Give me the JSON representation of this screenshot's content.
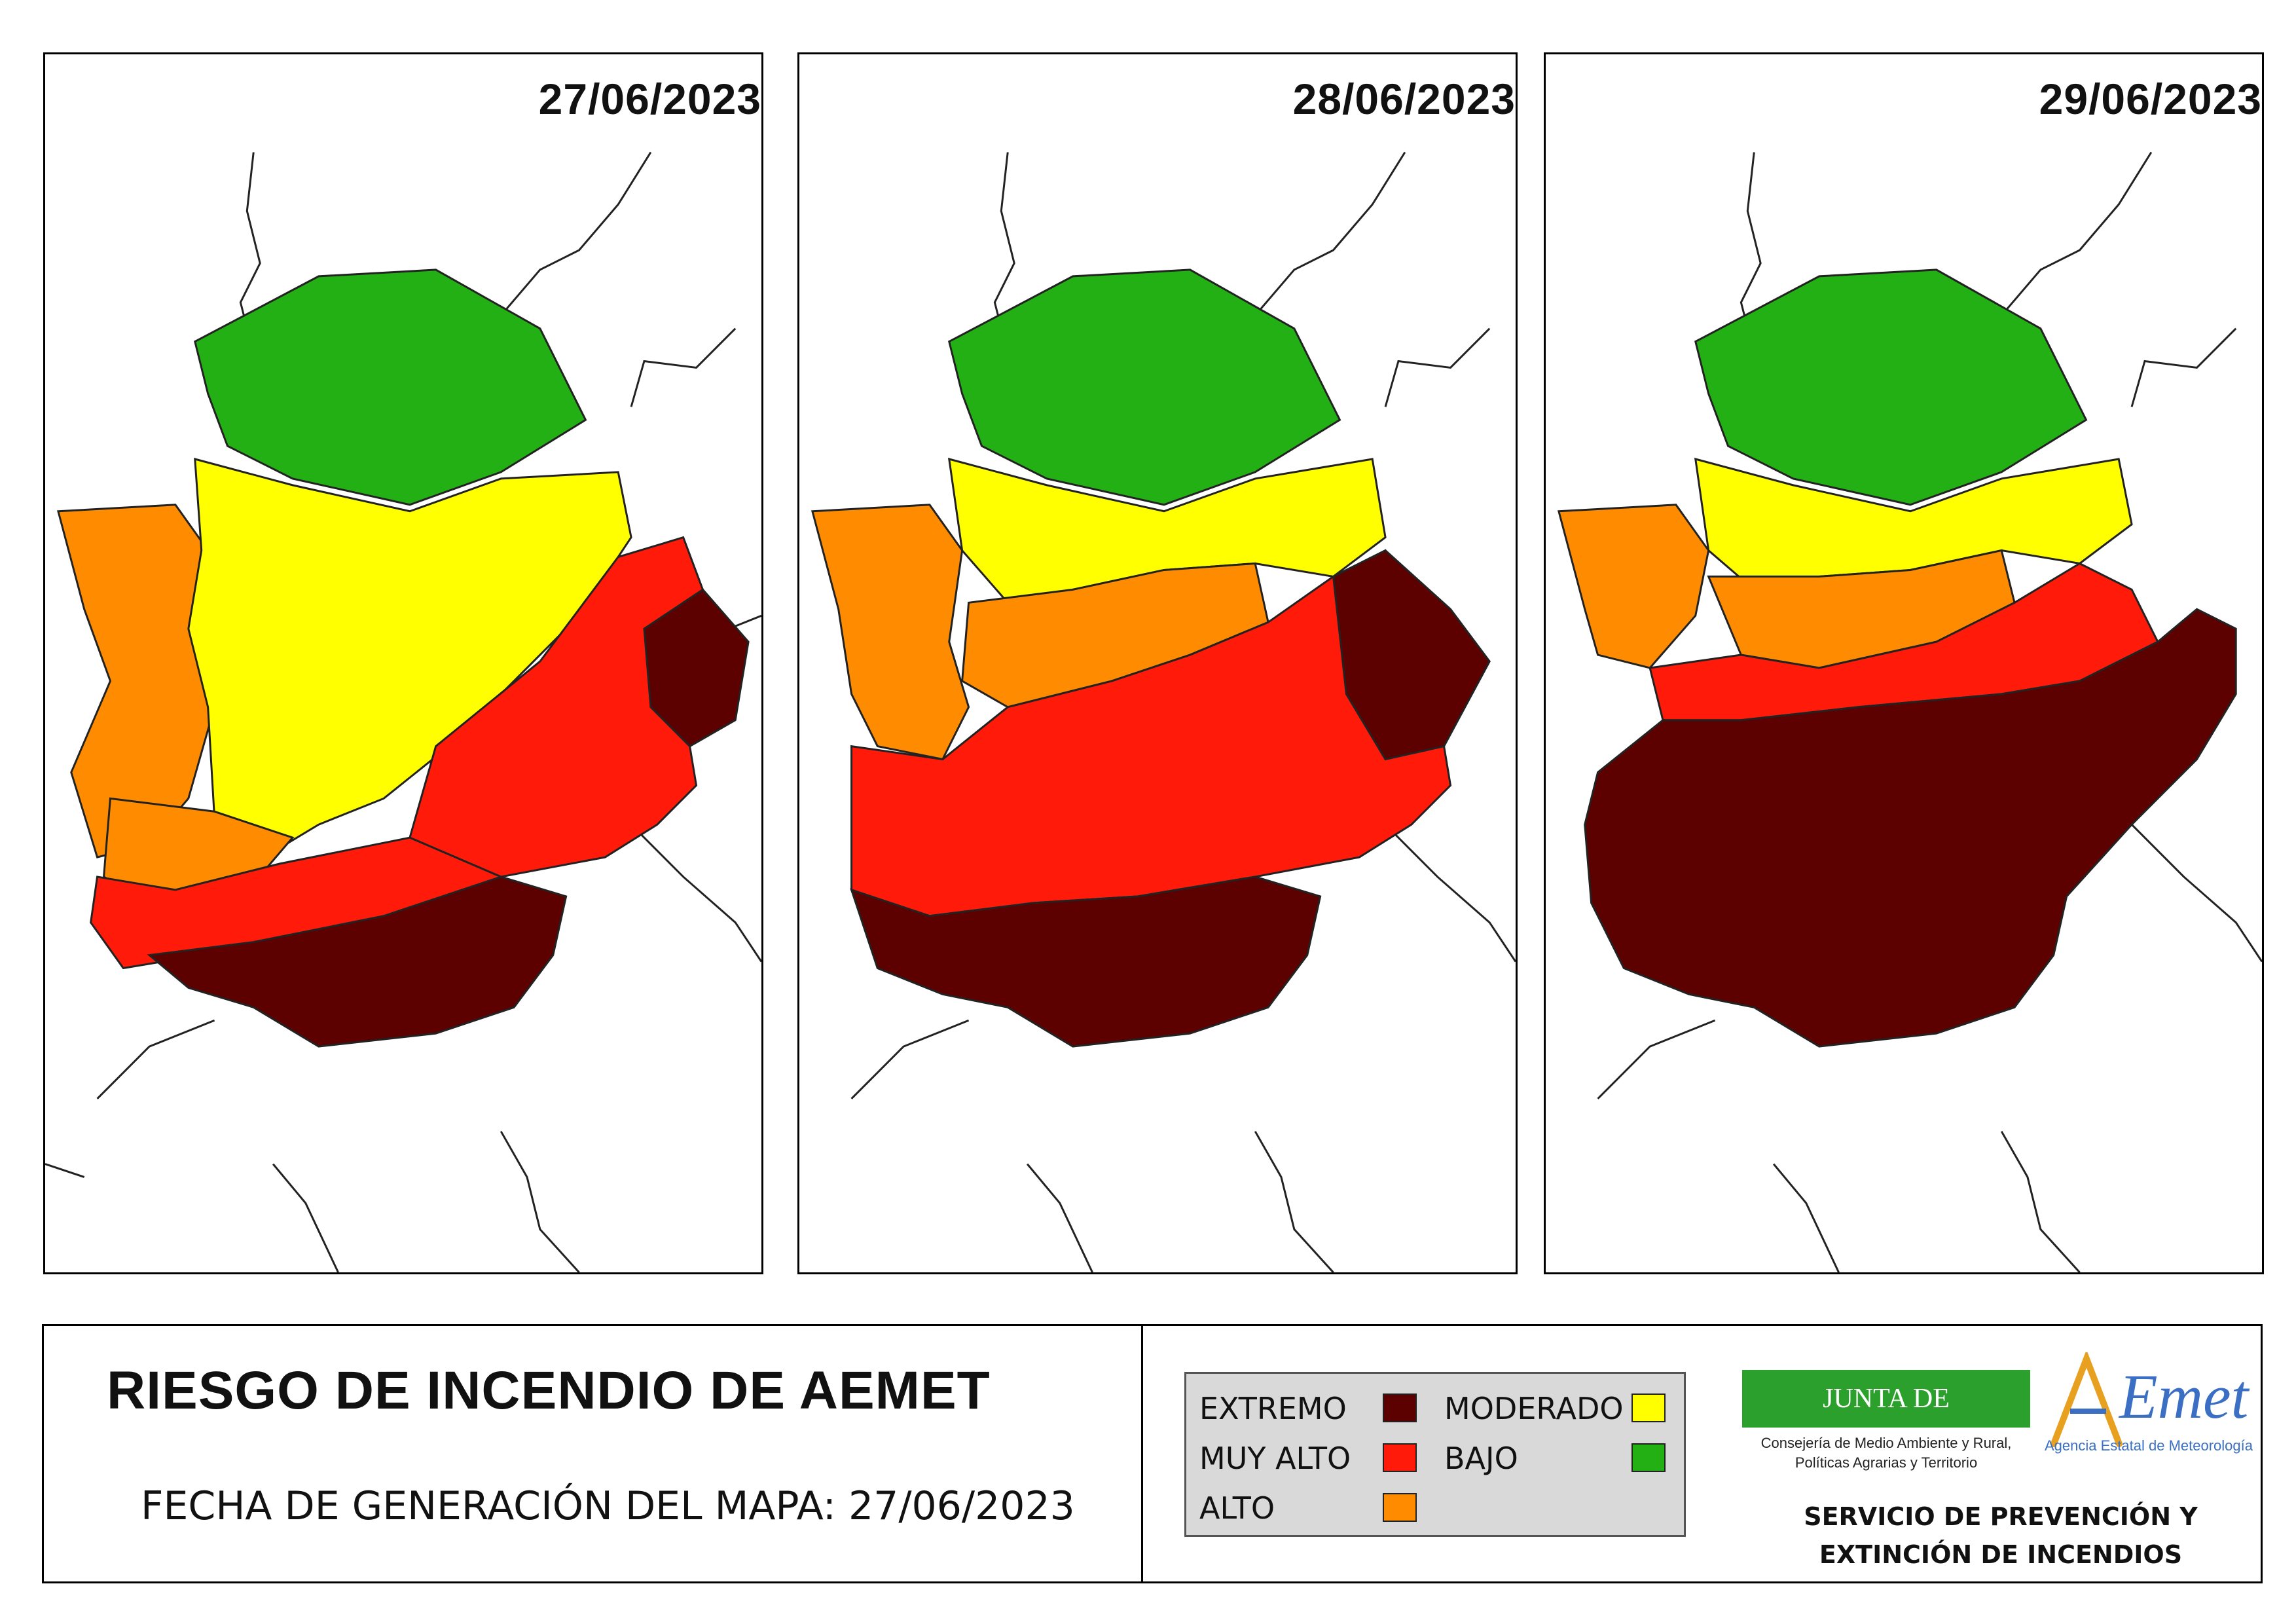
{
  "panels": [
    {
      "date": "27/06/2023",
      "regions": {
        "bajo": "north",
        "moderado": "center",
        "alto": "west",
        "muy_alto": "east",
        "extremo": "south"
      }
    },
    {
      "date": "28/06/2023",
      "regions": {
        "bajo": "north",
        "moderado": "center-north",
        "alto": "west",
        "muy_alto": "center",
        "extremo": "south-east"
      }
    },
    {
      "date": "29/06/2023",
      "regions": {
        "bajo": "north",
        "moderado": "north-center",
        "alto": "west",
        "muy_alto": "center-north",
        "extremo": "center-south"
      }
    }
  ],
  "footer": {
    "title": "RIESGO DE INCENDIO DE AEMET",
    "generation": "FECHA DE GENERACIÓN DEL MAPA: 27/06/2023"
  },
  "legend": {
    "items": [
      {
        "label": "EXTREMO",
        "color": "#5c0000"
      },
      {
        "label": "MUY ALTO",
        "color": "#ff1a0a"
      },
      {
        "label": "ALTO",
        "color": "#ff8c00"
      },
      {
        "label": "MODERADO",
        "color": "#ffff00"
      },
      {
        "label": "BAJO",
        "color": "#22b014"
      }
    ]
  },
  "logos": {
    "junta": "JUNTA DE EXTREMADURA",
    "junta_sub1": "Consejería de Medio Ambiente y Rural,",
    "junta_sub2": "Políticas Agrarias y Territorio",
    "aemet_sub": "Agencia Estatal de Meteorología",
    "service_line1": "SERVICIO DE PREVENCIÓN Y",
    "service_line2": "EXTINCIÓN DE INCENDIOS"
  }
}
